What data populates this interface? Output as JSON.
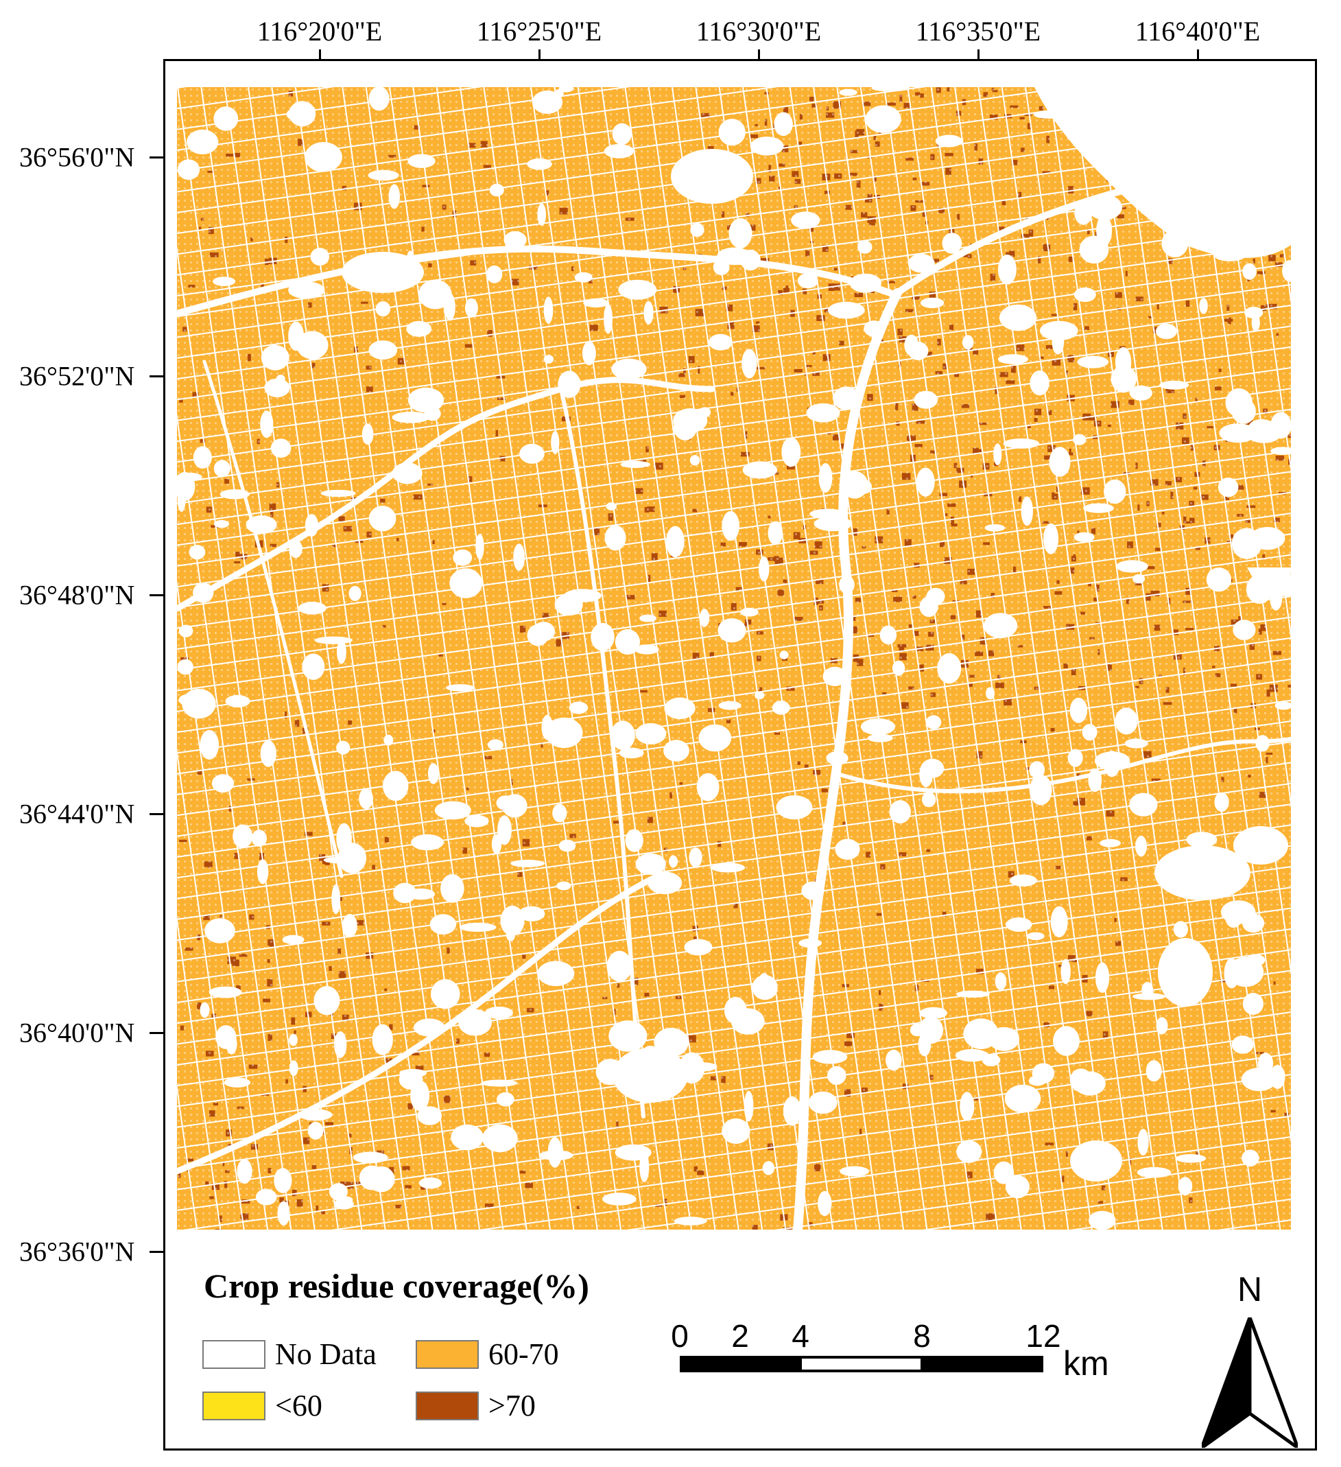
{
  "longitude_labels": [
    "116°20'0\"E",
    "116°25'0\"E",
    "116°30'0\"E",
    "116°35'0\"E",
    "116°40'0\"E"
  ],
  "latitude_labels": [
    "36°56'0\"N",
    "36°52'0\"N",
    "36°48'0\"N",
    "36°44'0\"N",
    "36°40'0\"N",
    "36°36'0\"N"
  ],
  "legend": {
    "title": "Crop residue coverage(%)",
    "items": [
      {
        "label": "No Data",
        "color": "#ffffff"
      },
      {
        "label": "60-70",
        "color": "#fbb131"
      },
      {
        "label": "<60",
        "color": "#fde21a"
      },
      {
        "label": ">70",
        "color": "#b04a0a"
      }
    ]
  },
  "scale_bar": {
    "labels": [
      "0",
      "2",
      "4",
      "8",
      "12"
    ],
    "unit": "km"
  },
  "north_arrow": {
    "letter": "N"
  },
  "colors": {
    "background": "#ffffff",
    "class_60_70": "#fbb131",
    "class_gt_70": "#b04a0a",
    "class_lt_60": "#fde21a",
    "frame": "#000000"
  }
}
